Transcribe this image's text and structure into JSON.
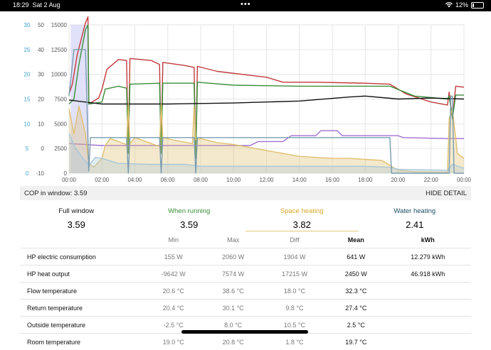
{
  "status": {
    "time": "18:29",
    "date": "Sat 2 Aug",
    "dots": "•••",
    "battery": "12%"
  },
  "chart_data": {
    "type": "line",
    "x_ticks": [
      "00:00",
      "02:00",
      "04:00",
      "06:00",
      "08:00",
      "10:00",
      "12:00",
      "14:00",
      "16:00",
      "18:00",
      "20:00",
      "22:00",
      "00:00"
    ],
    "x_range_hours": [
      0,
      24
    ],
    "axes": {
      "flow_temp": {
        "ticks": [
          "0",
          "5",
          "10",
          "15",
          "20",
          "25",
          "30"
        ],
        "color": "#3b9fd0"
      },
      "heat_temp": {
        "ticks": [
          "-10",
          "0",
          "10",
          "20",
          "30",
          "40",
          "50"
        ],
        "color": "#555555"
      },
      "power": {
        "ticks": [
          "0",
          "2500",
          "5000",
          "7500",
          "10000",
          "12500",
          "15000"
        ],
        "color": "#555555"
      }
    },
    "highlight_range_hours": [
      0.1,
      1.2
    ],
    "series": [
      {
        "color": "#c0393b",
        "points": [
          [
            0,
            8000
          ],
          [
            0.2,
            9000
          ],
          [
            0.5,
            12000
          ],
          [
            1.0,
            15200
          ],
          [
            1.15,
            15800
          ],
          [
            1.2,
            7000
          ],
          [
            1.4,
            7200
          ],
          [
            1.8,
            7600
          ],
          [
            2.0,
            8500
          ],
          [
            2.3,
            10500
          ],
          [
            3,
            11500
          ],
          [
            3.5,
            11400
          ],
          [
            3.6,
            2000
          ],
          [
            3.7,
            11600
          ],
          [
            5,
            11400
          ],
          [
            5.5,
            11000
          ],
          [
            5.6,
            2000
          ],
          [
            5.7,
            11200
          ],
          [
            7,
            10900
          ],
          [
            7.6,
            10700
          ],
          [
            7.7,
            1500
          ],
          [
            7.8,
            10800
          ],
          [
            9,
            10300
          ],
          [
            11,
            9900
          ],
          [
            12,
            9700
          ],
          [
            13,
            9200
          ],
          [
            15,
            9200
          ],
          [
            18,
            9100
          ],
          [
            19.5,
            9000
          ],
          [
            20.5,
            8000
          ],
          [
            22,
            7200
          ],
          [
            23.0,
            6900
          ],
          [
            23.1,
            8200
          ],
          [
            23.3,
            5500
          ],
          [
            23.5,
            8800
          ],
          [
            24,
            8700
          ]
        ]
      },
      {
        "color": "#3b8f3b",
        "points": [
          [
            0,
            7000
          ],
          [
            0.3,
            7500
          ],
          [
            0.6,
            11000
          ],
          [
            1.0,
            14500
          ],
          [
            1.15,
            15000
          ],
          [
            1.2,
            7000
          ],
          [
            2,
            7200
          ],
          [
            2.2,
            8500
          ],
          [
            3,
            8800
          ],
          [
            3.5,
            8600
          ],
          [
            3.6,
            2000
          ],
          [
            3.7,
            9000
          ],
          [
            5.5,
            9100
          ],
          [
            5.6,
            2000
          ],
          [
            5.7,
            9100
          ],
          [
            7.6,
            9100
          ],
          [
            7.7,
            1500
          ],
          [
            7.8,
            9200
          ],
          [
            10,
            8900
          ],
          [
            14,
            8800
          ],
          [
            19.5,
            8800
          ],
          [
            21,
            7800
          ],
          [
            23.0,
            7500
          ],
          [
            23.1,
            7800
          ],
          [
            23.3,
            5500
          ],
          [
            23.5,
            7900
          ],
          [
            24,
            7900
          ]
        ]
      },
      {
        "color": "#111111",
        "points": [
          [
            0,
            7400
          ],
          [
            2,
            7000
          ],
          [
            6,
            7000
          ],
          [
            10,
            7100
          ],
          [
            14,
            7300
          ],
          [
            17,
            7700
          ],
          [
            18,
            7800
          ],
          [
            20,
            7500
          ],
          [
            22,
            7600
          ],
          [
            24,
            7500
          ]
        ]
      },
      {
        "color": "#a070d0",
        "points": [
          [
            0,
            3000
          ],
          [
            1,
            2900
          ],
          [
            2,
            2800
          ],
          [
            5,
            2800
          ],
          [
            9,
            2800
          ],
          [
            11,
            2800
          ],
          [
            11.5,
            3200
          ],
          [
            13,
            3200
          ],
          [
            13.5,
            3800
          ],
          [
            15,
            3800
          ],
          [
            15.3,
            4300
          ],
          [
            16.3,
            4300
          ],
          [
            16.6,
            3800
          ],
          [
            20,
            3800
          ],
          [
            20.3,
            3600
          ],
          [
            23,
            3500
          ],
          [
            24,
            3500
          ]
        ]
      },
      {
        "color": "#e0c070",
        "area": true,
        "points": [
          [
            0,
            6500
          ],
          [
            0.3,
            4000
          ],
          [
            0.6,
            6800
          ],
          [
            1.0,
            4000
          ],
          [
            1.2,
            1000
          ],
          [
            1.5,
            600
          ],
          [
            2.0,
            1500
          ],
          [
            2.2,
            2800
          ],
          [
            2.5,
            3500
          ],
          [
            3,
            3200
          ],
          [
            3.5,
            2900
          ],
          [
            3.6,
            7000
          ],
          [
            3.7,
            3000
          ],
          [
            4,
            3600
          ],
          [
            5,
            3000
          ],
          [
            5.5,
            2700
          ],
          [
            5.6,
            7000
          ],
          [
            5.7,
            3600
          ],
          [
            6.5,
            3300
          ],
          [
            7.5,
            3000
          ],
          [
            7.6,
            6800
          ],
          [
            7.7,
            3400
          ],
          [
            8,
            3500
          ],
          [
            9,
            3100
          ],
          [
            10,
            2900
          ],
          [
            11,
            2600
          ],
          [
            12,
            2300
          ],
          [
            13,
            2000
          ],
          [
            14,
            1700
          ],
          [
            15,
            1600
          ],
          [
            16,
            1500
          ],
          [
            17,
            1500
          ],
          [
            18,
            1400
          ],
          [
            19,
            1300
          ],
          [
            19.5,
            800
          ],
          [
            20,
            300
          ],
          [
            21,
            150
          ],
          [
            23.0,
            100
          ],
          [
            23.1,
            5500
          ],
          [
            23.3,
            6500
          ],
          [
            23.6,
            2000
          ],
          [
            24,
            1500
          ]
        ]
      },
      {
        "color": "#a8c8d8",
        "area": true,
        "points": [
          [
            0,
            4000
          ],
          [
            0.4,
            2500
          ],
          [
            0.8,
            1600
          ],
          [
            1.2,
            800
          ],
          [
            1.6,
            1600
          ],
          [
            2.0,
            1500
          ],
          [
            3,
            1000
          ],
          [
            5,
            900
          ],
          [
            7,
            900
          ],
          [
            8,
            700
          ],
          [
            10,
            700
          ],
          [
            14,
            700
          ],
          [
            18,
            700
          ],
          [
            19.5,
            600
          ],
          [
            20,
            400
          ],
          [
            23,
            300
          ],
          [
            23.3,
            900
          ],
          [
            24,
            500
          ]
        ]
      },
      {
        "color": "#7a9cb0",
        "points": [
          [
            0,
            7800
          ],
          [
            0.3,
            12500
          ],
          [
            1.0,
            12500
          ],
          [
            1.2,
            200
          ],
          [
            1.3,
            3600
          ],
          [
            3.5,
            3600
          ],
          [
            3.6,
            0
          ],
          [
            3.7,
            3600
          ],
          [
            5.5,
            3600
          ],
          [
            5.6,
            0
          ],
          [
            5.7,
            3600
          ],
          [
            7.6,
            3600
          ],
          [
            7.7,
            0
          ],
          [
            7.8,
            3600
          ],
          [
            19.5,
            3600
          ],
          [
            19.6,
            0
          ],
          [
            23.1,
            0
          ],
          [
            23.2,
            7800
          ],
          [
            23.3,
            7800
          ],
          [
            23.4,
            0
          ],
          [
            24,
            0
          ]
        ]
      }
    ]
  },
  "cop_bar": {
    "label": "COP in window: 3.59",
    "hide": "HIDE DETAIL"
  },
  "cop": [
    {
      "title": "Full window",
      "value": "3.59",
      "color": "#111111"
    },
    {
      "title": "When running",
      "value": "3.59",
      "color": "#3b8f3b"
    },
    {
      "title": "Space heating",
      "value": "3.82",
      "color": "#d8a826"
    },
    {
      "title": "Water heating",
      "value": "2.41",
      "color": "#1d4f63"
    }
  ],
  "table": {
    "headers": [
      "",
      "Min",
      "Max",
      "Diff",
      "Mean",
      "kWh"
    ],
    "rows": [
      [
        "HP electric consumption",
        "155 W",
        "2060 W",
        "1904 W",
        "641 W",
        "12.279 kWh"
      ],
      [
        "HP heat output",
        "-9642 W",
        "7574 W",
        "17215 W",
        "2450 W",
        "46.918 kWh"
      ],
      [
        "Flow temperature",
        "20.6 °C",
        "38.6 °C",
        "18.0 °C",
        "32.3 °C",
        ""
      ],
      [
        "Return temperature",
        "20.4 °C",
        "30.1 °C",
        "9.8 °C",
        "27.4 °C",
        ""
      ],
      [
        "Outside temperature",
        "-2.5 °C",
        "8.0 °C",
        "10.5 °C",
        "2.5 °C",
        ""
      ],
      [
        "Room temperature",
        "19.0 °C",
        "20.8 °C",
        "1.8 °C",
        "19.7 °C",
        ""
      ]
    ]
  }
}
